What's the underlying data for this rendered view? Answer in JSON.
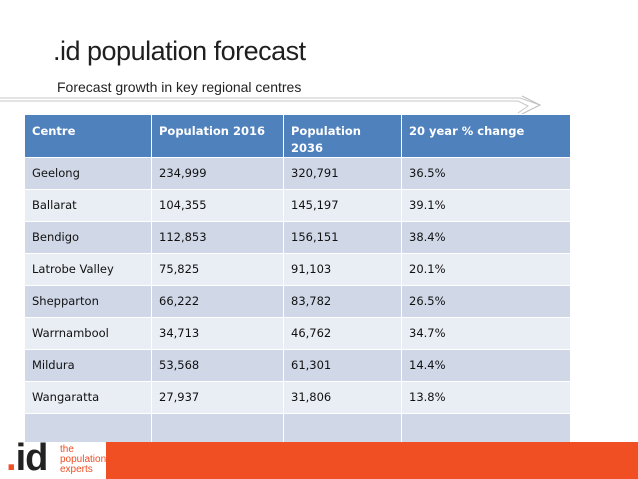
{
  "slide": {
    "title": ".id population forecast",
    "subtitle": "Forecast growth in key regional centres"
  },
  "table": {
    "headers": [
      "Centre",
      "Population 2016",
      "Population 2036",
      "20 year % change"
    ],
    "rows": [
      [
        "Geelong",
        "234,999",
        "320,791",
        "36.5%"
      ],
      [
        "Ballarat",
        "104,355",
        "145,197",
        "39.1%"
      ],
      [
        "Bendigo",
        "112,853",
        "156,151",
        "38.4%"
      ],
      [
        "Latrobe Valley",
        "75,825",
        "91,103",
        "20.1%"
      ],
      [
        "Shepparton",
        "66,222",
        "83,782",
        "26.5%"
      ],
      [
        "Warrnambool",
        "34,713",
        "46,762",
        "34.7%"
      ],
      [
        "Mildura",
        "53,568",
        "61,301",
        "14.4%"
      ],
      [
        "Wangaratta",
        "27,937",
        "31,806",
        "13.8%"
      ],
      [
        "",
        "",
        "",
        ""
      ]
    ]
  },
  "footer": {
    "logo": ".id",
    "tagline": [
      "the",
      "population",
      "experts"
    ]
  },
  "colors": {
    "header_bg": "#4f81bd",
    "row_odd": "#d0d8e8",
    "row_even": "#e9edf4",
    "brand_orange": "#f04e23"
  }
}
